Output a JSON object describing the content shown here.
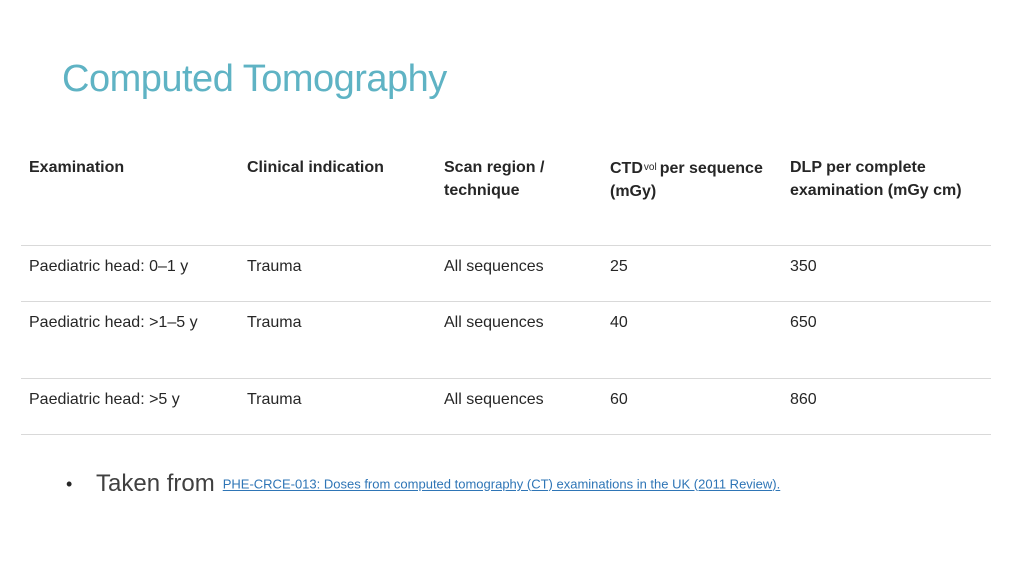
{
  "title": "Computed Tomography",
  "table": {
    "headers": {
      "examination": "Examination",
      "indication": "Clinical indication",
      "region": "Scan region / technique",
      "ctd_main": "CTD",
      "ctd_sub": "vol",
      "ctd_rest": "per sequence (mGy)",
      "dlp": "DLP per complete examination (mGy cm)"
    },
    "rows": [
      {
        "examination": "Paediatric head: 0–1 y",
        "indication": "Trauma",
        "region": "All sequences",
        "ctdvol": "25",
        "dlp": "350"
      },
      {
        "examination": "Paediatric head: >1–5 y",
        "indication": "Trauma",
        "region": "All sequences",
        "ctdvol": "40",
        "dlp": "650"
      },
      {
        "examination": "Paediatric head: >5 y",
        "indication": "Trauma",
        "region": "All sequences",
        "ctdvol": "60",
        "dlp": "860"
      }
    ]
  },
  "footer": {
    "bullet": "•",
    "label": "Taken from",
    "link_text": "PHE-CRCE-013: Doses from computed tomography (CT) examinations in the UK (2011 Review)."
  }
}
